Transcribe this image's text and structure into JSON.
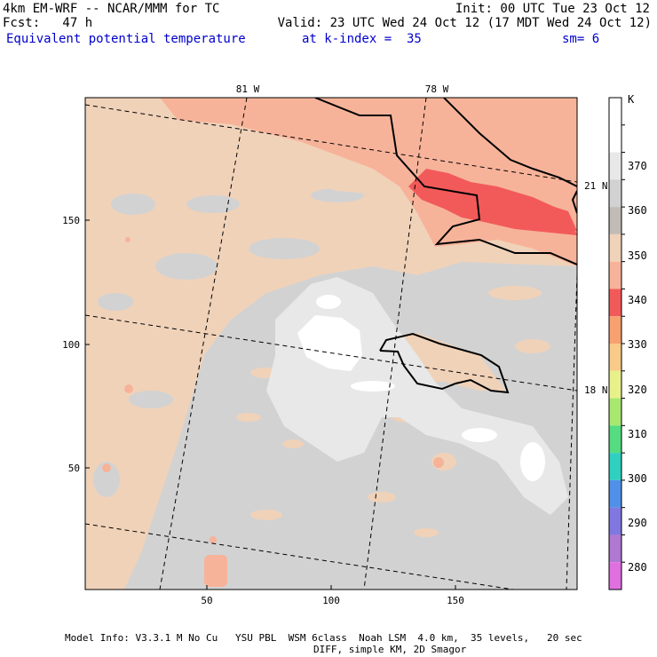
{
  "header": {
    "model": "4km EM-WRF -- NCAR/MMM for TC",
    "init": "Init: 00 UTC Tue 23 Oct 12",
    "fcst": "Fcst:   47 h",
    "valid": "Valid: 23 UTC Wed 24 Oct 12 (17 MDT Wed 24 Oct 12)",
    "field": "Equivalent potential temperature",
    "level": "at k-index =  35",
    "smoothing": "sm= 6"
  },
  "map": {
    "lon_labels": [
      "81 W",
      "78 W"
    ],
    "lat_labels": [
      "21 N",
      "18 N"
    ],
    "x_ticks": [
      "50",
      "100",
      "150"
    ],
    "y_ticks": [
      "50",
      "100",
      "150"
    ],
    "colors": {
      "white": "#ffffff",
      "light_gray": "#e8e8e8",
      "gray": "#d2d2d2",
      "tan": "#f0d2b9",
      "salmon": "#f7b39a",
      "red": "#f25a5a",
      "coast": "#000000"
    }
  },
  "colorbar": {
    "unit": "K",
    "labels": [
      "370",
      "360",
      "350",
      "340",
      "330",
      "320",
      "310",
      "300",
      "290",
      "280"
    ],
    "colors": [
      "#ffffff",
      "#ffffff",
      "#e8e8e8",
      "#d2d2d2",
      "#c2bcb6",
      "#f0d2b9",
      "#f7b39a",
      "#f25a5a",
      "#f7a070",
      "#f8cc88",
      "#e8f08a",
      "#a8e870",
      "#55dc80",
      "#30d0c0",
      "#5090e8",
      "#8078e0",
      "#b078d0",
      "#e070e0"
    ]
  },
  "footer": {
    "line1": "Model Info: V3.3.1 M No Cu   YSU PBL  WSM 6class  Noah LSM  4.0 km,  35 levels,   20 sec",
    "line2": "DIFF, simple KM, 2D Smagor"
  }
}
